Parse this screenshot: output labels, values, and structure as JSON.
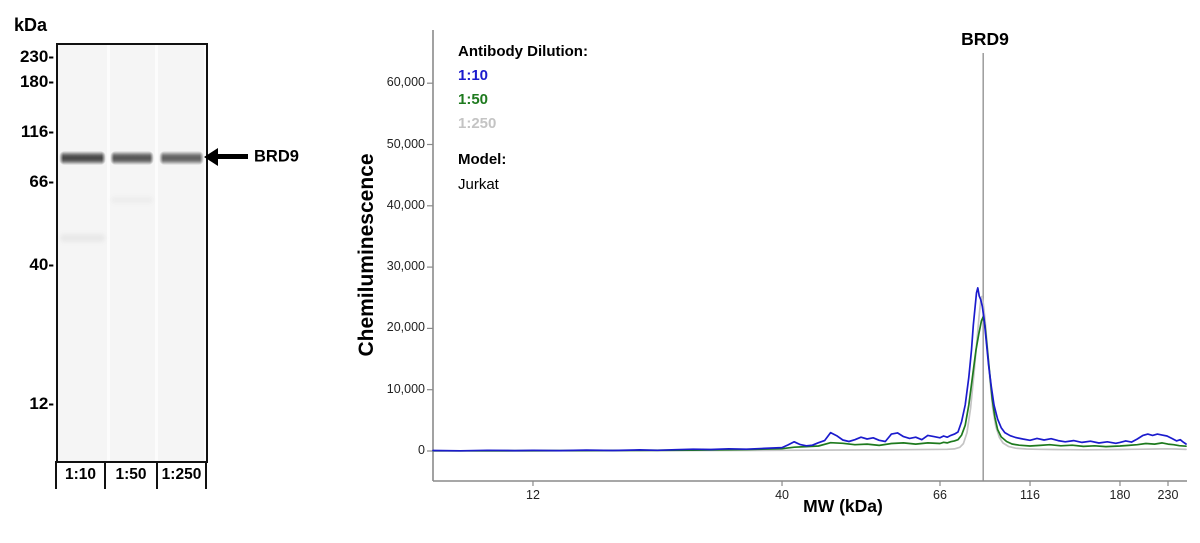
{
  "blot": {
    "unit_label": "kDa",
    "ladder_labels": [
      "230-",
      "180-",
      "116-",
      "66-",
      "40-",
      "12-"
    ],
    "lane_labels": [
      "1:10",
      "1:50",
      "1:250"
    ],
    "band_annotation": "BRD9"
  },
  "chart_data": {
    "type": "line",
    "title": "BRD9",
    "xlabel": "MW (kDa)",
    "ylabel": "Chemiluminescence",
    "grid": false,
    "x_scale": "nonlinear-migration",
    "x_ticks": [
      12,
      40,
      66,
      116,
      180,
      230
    ],
    "x_tick_labels": [
      "12",
      "40",
      "66",
      "116",
      "180",
      "230"
    ],
    "x_axis_mapping": [
      [
        1,
        0
      ],
      [
        12,
        0.1326
      ],
      [
        40,
        0.4629
      ],
      [
        66,
        0.6724
      ],
      [
        116,
        0.7918
      ],
      [
        180,
        0.9111
      ],
      [
        230,
        0.9748
      ],
      [
        250,
        1
      ]
    ],
    "y_ticks": [
      0,
      10000,
      20000,
      30000,
      40000,
      50000,
      60000
    ],
    "y_tick_labels": [
      "0",
      "10,000",
      "20,000",
      "30,000",
      "40,000",
      "50,000",
      "60,000"
    ],
    "ylim": [
      0,
      60000
    ],
    "marker_mw": 90,
    "marker_label": "BRD9",
    "legend": {
      "title": "Antibody Dilution:",
      "position": "top-left",
      "items": [
        {
          "label": "1:10",
          "color": "#1b1bcd"
        },
        {
          "label": "1:50",
          "color": "#1e7a1e"
        },
        {
          "label": "1:250",
          "color": "#c4c4c4"
        }
      ],
      "model_label": "Model:",
      "model_value": "Jurkat"
    },
    "axis_color": "#8a8a8a",
    "marker_color": "#9c9c9c",
    "series": [
      {
        "name": "1:10",
        "color": "#1b1bcd",
        "points": [
          [
            1,
            80
          ],
          [
            4,
            40
          ],
          [
            7,
            120
          ],
          [
            10,
            60
          ],
          [
            12,
            100
          ],
          [
            15,
            60
          ],
          [
            18,
            140
          ],
          [
            21,
            80
          ],
          [
            24,
            180
          ],
          [
            26,
            120
          ],
          [
            28,
            220
          ],
          [
            30,
            300
          ],
          [
            32,
            240
          ],
          [
            34,
            360
          ],
          [
            36,
            300
          ],
          [
            38,
            420
          ],
          [
            40,
            560
          ],
          [
            41,
            1000
          ],
          [
            42,
            1500
          ],
          [
            43,
            1050
          ],
          [
            44,
            850
          ],
          [
            45,
            950
          ],
          [
            46,
            1350
          ],
          [
            47,
            1700
          ],
          [
            48,
            3000
          ],
          [
            49,
            2500
          ],
          [
            50,
            1800
          ],
          [
            51,
            1550
          ],
          [
            52,
            1850
          ],
          [
            53,
            2250
          ],
          [
            54,
            1950
          ],
          [
            55,
            2150
          ],
          [
            56,
            1750
          ],
          [
            57,
            1550
          ],
          [
            58,
            2750
          ],
          [
            59,
            2950
          ],
          [
            60,
            2350
          ],
          [
            61,
            2050
          ],
          [
            62,
            2250
          ],
          [
            63,
            1850
          ],
          [
            64,
            2550
          ],
          [
            65,
            2350
          ],
          [
            66,
            2150
          ],
          [
            68,
            2450
          ],
          [
            70,
            2250
          ],
          [
            72,
            2550
          ],
          [
            74,
            2750
          ],
          [
            76,
            3100
          ],
          [
            78,
            4800
          ],
          [
            80,
            7500
          ],
          [
            82,
            12000
          ],
          [
            83.5,
            16500
          ],
          [
            84.5,
            20500
          ],
          [
            85.5,
            23500
          ],
          [
            86.3,
            25800
          ],
          [
            87,
            26600
          ],
          [
            87.8,
            25300
          ],
          [
            88.6,
            24700
          ],
          [
            89.5,
            23600
          ],
          [
            90.5,
            21500
          ],
          [
            91.5,
            18500
          ],
          [
            93,
            14000
          ],
          [
            94.5,
            10500
          ],
          [
            96,
            7500
          ],
          [
            98,
            5200
          ],
          [
            100,
            3800
          ],
          [
            102,
            3000
          ],
          [
            105,
            2500
          ],
          [
            108,
            2200
          ],
          [
            112,
            1950
          ],
          [
            116,
            1750
          ],
          [
            121,
            2050
          ],
          [
            126,
            1800
          ],
          [
            131,
            2000
          ],
          [
            136,
            1700
          ],
          [
            141,
            1500
          ],
          [
            147,
            1700
          ],
          [
            153,
            1400
          ],
          [
            159,
            1600
          ],
          [
            165,
            1300
          ],
          [
            171,
            1500
          ],
          [
            177,
            1250
          ],
          [
            180,
            1400
          ],
          [
            186,
            1650
          ],
          [
            192,
            1450
          ],
          [
            198,
            1950
          ],
          [
            204,
            2550
          ],
          [
            209,
            2750
          ],
          [
            214,
            2550
          ],
          [
            219,
            2750
          ],
          [
            224,
            2600
          ],
          [
            229,
            2450
          ],
          [
            234,
            2050
          ],
          [
            239,
            1650
          ],
          [
            243,
            1850
          ],
          [
            246,
            1450
          ],
          [
            249,
            1150
          ]
        ]
      },
      {
        "name": "1:50",
        "color": "#1e7a1e",
        "points": [
          [
            1,
            40
          ],
          [
            8,
            30
          ],
          [
            16,
            60
          ],
          [
            24,
            90
          ],
          [
            30,
            140
          ],
          [
            36,
            240
          ],
          [
            40,
            380
          ],
          [
            42,
            620
          ],
          [
            44,
            720
          ],
          [
            46,
            820
          ],
          [
            48,
            1350
          ],
          [
            50,
            1250
          ],
          [
            52,
            1020
          ],
          [
            54,
            1120
          ],
          [
            56,
            920
          ],
          [
            58,
            1220
          ],
          [
            60,
            1320
          ],
          [
            62,
            1120
          ],
          [
            64,
            1320
          ],
          [
            66,
            1220
          ],
          [
            68,
            1420
          ],
          [
            70,
            1320
          ],
          [
            72,
            1520
          ],
          [
            74,
            1650
          ],
          [
            76,
            1850
          ],
          [
            78,
            2600
          ],
          [
            80,
            4200
          ],
          [
            82,
            7500
          ],
          [
            84,
            12000
          ],
          [
            86,
            16500
          ],
          [
            87.5,
            19000
          ],
          [
            89,
            21200
          ],
          [
            90,
            21900
          ],
          [
            91,
            20500
          ],
          [
            92,
            17500
          ],
          [
            93.5,
            13000
          ],
          [
            95,
            8500
          ],
          [
            96.5,
            5500
          ],
          [
            98,
            3500
          ],
          [
            100,
            2300
          ],
          [
            103,
            1550
          ],
          [
            106,
            1150
          ],
          [
            110,
            950
          ],
          [
            116,
            820
          ],
          [
            123,
            920
          ],
          [
            130,
            1020
          ],
          [
            138,
            850
          ],
          [
            146,
            950
          ],
          [
            154,
            750
          ],
          [
            162,
            850
          ],
          [
            170,
            720
          ],
          [
            180,
            820
          ],
          [
            189,
            920
          ],
          [
            198,
            1020
          ],
          [
            207,
            1220
          ],
          [
            216,
            1120
          ],
          [
            224,
            1320
          ],
          [
            230,
            1120
          ],
          [
            236,
            1020
          ],
          [
            242,
            870
          ],
          [
            249,
            780
          ]
        ]
      },
      {
        "name": "1:250",
        "color": "#c4c4c4",
        "points": [
          [
            1,
            20
          ],
          [
            15,
            40
          ],
          [
            30,
            80
          ],
          [
            40,
            120
          ],
          [
            50,
            170
          ],
          [
            60,
            220
          ],
          [
            70,
            280
          ],
          [
            74,
            350
          ],
          [
            77,
            600
          ],
          [
            79,
            1200
          ],
          [
            81,
            3000
          ],
          [
            83,
            7000
          ],
          [
            85,
            13000
          ],
          [
            86.5,
            18000
          ],
          [
            87.7,
            22000
          ],
          [
            88.7,
            24800
          ],
          [
            89.3,
            25200
          ],
          [
            90,
            24200
          ],
          [
            91,
            21500
          ],
          [
            92.3,
            17000
          ],
          [
            93.8,
            11500
          ],
          [
            95.3,
            7000
          ],
          [
            97,
            4000
          ],
          [
            99,
            2200
          ],
          [
            101,
            1300
          ],
          [
            104,
            750
          ],
          [
            108,
            450
          ],
          [
            114,
            330
          ],
          [
            122,
            280
          ],
          [
            132,
            240
          ],
          [
            144,
            210
          ],
          [
            156,
            190
          ],
          [
            168,
            210
          ],
          [
            180,
            240
          ],
          [
            192,
            270
          ],
          [
            204,
            300
          ],
          [
            216,
            330
          ],
          [
            228,
            360
          ],
          [
            238,
            320
          ],
          [
            249,
            260
          ]
        ]
      }
    ]
  }
}
